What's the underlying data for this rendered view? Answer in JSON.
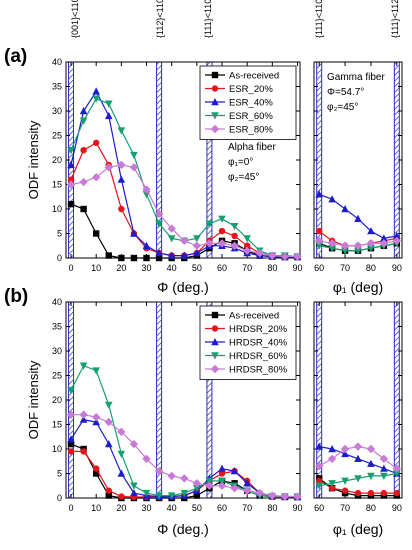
{
  "figure": {
    "top_labels": [
      "{001}<110>",
      "{112}<110>",
      "{111}<110>",
      "{111}<110>",
      "{111}<112>"
    ]
  },
  "chart_data": [
    {
      "id": "a-alpha",
      "panel_label": "(a)",
      "type": "line",
      "xlabel": "Φ (deg.)",
      "ylabel": "ODF intensity",
      "xlim": [
        -2,
        91
      ],
      "ylim": [
        0,
        40
      ],
      "xticks": [
        0,
        10,
        20,
        30,
        40,
        50,
        60,
        70,
        80,
        90
      ],
      "yticks": [
        0,
        5,
        10,
        15,
        20,
        25,
        30,
        35,
        40
      ],
      "hatch_x": [
        0,
        35,
        55
      ],
      "legend": "top-right",
      "annotation": [
        "Alpha fiber",
        "φ₁=0°",
        "φ₂=45°"
      ],
      "series": [
        {
          "name": "As-received",
          "color": "#000000",
          "marker": "square",
          "x": [
            0,
            5,
            10,
            15,
            20,
            25,
            30,
            35,
            40,
            45,
            50,
            55,
            60,
            65,
            70,
            75,
            80,
            85,
            90
          ],
          "y": [
            11,
            10,
            5,
            0.5,
            0,
            0,
            0,
            0,
            0,
            0,
            0.5,
            2,
            3.5,
            3,
            1.5,
            0.5,
            0.3,
            0.2,
            0.2
          ]
        },
        {
          "name": "ESR_20%",
          "color": "#e8141c",
          "marker": "circle",
          "x": [
            0,
            5,
            10,
            15,
            20,
            25,
            30,
            35,
            40,
            45,
            50,
            55,
            60,
            65,
            70,
            75,
            80,
            85,
            90
          ],
          "y": [
            16,
            22,
            23.5,
            19,
            10,
            5,
            2,
            1,
            0.5,
            0.5,
            1,
            3.5,
            5.5,
            4.5,
            2.5,
            1,
            0.5,
            0.3,
            0.3
          ]
        },
        {
          "name": "ESR_40%",
          "color": "#1c1ccc",
          "marker": "triangle-up",
          "x": [
            0,
            5,
            10,
            15,
            20,
            25,
            30,
            35,
            40,
            45,
            50,
            55,
            60,
            65,
            70,
            75,
            80,
            85,
            90
          ],
          "y": [
            19,
            30,
            34,
            29,
            16,
            5,
            2.5,
            1,
            0.5,
            0.5,
            1,
            2.5,
            2.5,
            2,
            1,
            0.5,
            0.3,
            0.2,
            0.2
          ]
        },
        {
          "name": "ESR_60%",
          "color": "#14a070",
          "marker": "triangle-down",
          "x": [
            0,
            5,
            10,
            15,
            20,
            25,
            30,
            35,
            40,
            45,
            50,
            55,
            60,
            65,
            70,
            75,
            80,
            85,
            90
          ],
          "y": [
            22,
            28,
            32.5,
            31.5,
            26,
            21,
            13,
            7,
            4,
            3.5,
            4,
            7,
            8,
            6.5,
            4,
            1.5,
            0.5,
            0.5,
            0.3
          ]
        },
        {
          "name": "ESR_80%",
          "color": "#c97ad6",
          "marker": "diamond",
          "x": [
            0,
            5,
            10,
            15,
            20,
            25,
            30,
            35,
            40,
            45,
            50,
            55,
            60,
            65,
            70,
            75,
            80,
            85,
            90
          ],
          "y": [
            15,
            15.5,
            16.5,
            18.5,
            19,
            18.5,
            14,
            9,
            6,
            3.5,
            2.5,
            3,
            3,
            2.5,
            1.5,
            1,
            0.5,
            0.3,
            0.3
          ]
        }
      ]
    },
    {
      "id": "a-gamma",
      "type": "line",
      "xlabel": "φ₁ (deg)",
      "xlim": [
        58,
        92
      ],
      "ylim": [
        0,
        40
      ],
      "xticks": [
        60,
        70,
        80,
        90
      ],
      "hatch_x": [
        60,
        90
      ],
      "annotation": [
        "Gamma fiber",
        "Φ=54.7°",
        "φ₂=45°"
      ],
      "series": [
        {
          "name": "As-received",
          "color": "#000000",
          "marker": "square",
          "x": [
            60,
            65,
            70,
            75,
            80,
            85,
            90
          ],
          "y": [
            3,
            2,
            1.5,
            1.5,
            2,
            2.5,
            3
          ]
        },
        {
          "name": "ESR_20%",
          "color": "#e8141c",
          "marker": "circle",
          "x": [
            60,
            65,
            70,
            75,
            80,
            85,
            90
          ],
          "y": [
            5.5,
            3.5,
            2.5,
            2.5,
            3,
            3.5,
            4
          ]
        },
        {
          "name": "ESR_40%",
          "color": "#1c1ccc",
          "marker": "triangle-up",
          "x": [
            60,
            65,
            70,
            75,
            80,
            85,
            90
          ],
          "y": [
            13,
            12,
            10,
            8,
            5.5,
            4,
            4.5
          ]
        },
        {
          "name": "ESR_60%",
          "color": "#14a070",
          "marker": "triangle-down",
          "x": [
            60,
            65,
            70,
            75,
            80,
            85,
            90
          ],
          "y": [
            2.5,
            2,
            1.5,
            1.5,
            2,
            2.5,
            3
          ]
        },
        {
          "name": "ESR_80%",
          "color": "#c97ad6",
          "marker": "diamond",
          "x": [
            60,
            65,
            70,
            75,
            80,
            85,
            90
          ],
          "y": [
            3.5,
            3,
            2.5,
            2.5,
            3,
            3,
            3.5
          ]
        }
      ]
    },
    {
      "id": "b-alpha",
      "panel_label": "(b)",
      "type": "line",
      "xlabel": "Φ (deg.)",
      "ylabel": "ODF intensity",
      "xlim": [
        -2,
        91
      ],
      "ylim": [
        0,
        40
      ],
      "xticks": [
        0,
        10,
        20,
        30,
        40,
        50,
        60,
        70,
        80,
        90
      ],
      "yticks": [
        0,
        5,
        10,
        15,
        20,
        25,
        30,
        35,
        40
      ],
      "hatch_x": [
        0,
        35,
        55
      ],
      "legend": "top-right",
      "series": [
        {
          "name": "As-received",
          "color": "#000000",
          "marker": "square",
          "x": [
            0,
            5,
            10,
            15,
            20,
            25,
            30,
            35,
            40,
            45,
            50,
            55,
            60,
            65,
            70,
            75,
            80,
            85,
            90
          ],
          "y": [
            11,
            10,
            5,
            0.5,
            0,
            0,
            0,
            0,
            0,
            0,
            0.5,
            2,
            3.5,
            3,
            1.5,
            0.5,
            0.3,
            0.2,
            0.2
          ]
        },
        {
          "name": "HRDSR_20%",
          "color": "#e8141c",
          "marker": "circle",
          "x": [
            0,
            5,
            10,
            15,
            20,
            25,
            30,
            35,
            40,
            45,
            50,
            55,
            60,
            65,
            70,
            75,
            80,
            85,
            90
          ],
          "y": [
            9.5,
            9.5,
            6,
            1.5,
            0.3,
            0.2,
            0.2,
            0.2,
            0.3,
            0.5,
            1.5,
            3.5,
            5,
            5.5,
            3.5,
            1,
            0.3,
            0.2,
            0.2
          ]
        },
        {
          "name": "HRDSR_40%",
          "color": "#1c1ccc",
          "marker": "triangle-up",
          "x": [
            0,
            5,
            10,
            15,
            20,
            25,
            30,
            35,
            40,
            45,
            50,
            55,
            60,
            65,
            70,
            75,
            80,
            85,
            90
          ],
          "y": [
            12,
            16,
            15.5,
            11,
            5,
            1,
            0.5,
            0.3,
            0.3,
            0.5,
            1.5,
            4,
            6,
            5.5,
            3,
            1,
            0.5,
            0.3,
            0.2
          ]
        },
        {
          "name": "HRDSR_60%",
          "color": "#14a070",
          "marker": "triangle-down",
          "x": [
            0,
            5,
            10,
            15,
            20,
            25,
            30,
            35,
            40,
            45,
            50,
            55,
            60,
            65,
            70,
            75,
            80,
            85,
            90
          ],
          "y": [
            22,
            27,
            26,
            19,
            9,
            2.5,
            1,
            0.5,
            0.5,
            1,
            2,
            3.5,
            3.5,
            2.5,
            1.5,
            0.5,
            0.3,
            0.3,
            0.3
          ]
        },
        {
          "name": "HRDSR_80%",
          "color": "#c97ad6",
          "marker": "diamond",
          "x": [
            0,
            5,
            10,
            15,
            20,
            25,
            30,
            35,
            40,
            45,
            50,
            55,
            60,
            65,
            70,
            75,
            80,
            85,
            90
          ],
          "y": [
            17,
            17,
            16.5,
            15.5,
            13.5,
            11,
            8,
            5.5,
            4.5,
            4,
            3,
            2.5,
            2.5,
            2,
            1.5,
            1,
            0.5,
            0.3,
            0.3
          ]
        }
      ]
    },
    {
      "id": "b-gamma",
      "type": "line",
      "xlabel": "φ₁ (deg)",
      "xlim": [
        58,
        92
      ],
      "ylim": [
        0,
        40
      ],
      "xticks": [
        60,
        70,
        80,
        90
      ],
      "hatch_x": [
        60,
        90
      ],
      "series": [
        {
          "name": "As-received",
          "color": "#000000",
          "marker": "square",
          "x": [
            60,
            65,
            70,
            75,
            80,
            85,
            90
          ],
          "y": [
            4,
            2,
            1,
            0.5,
            0.5,
            0.5,
            0.5
          ]
        },
        {
          "name": "HRDSR_20%",
          "color": "#e8141c",
          "marker": "circle",
          "x": [
            60,
            65,
            70,
            75,
            80,
            85,
            90
          ],
          "y": [
            3.5,
            2,
            1.5,
            1,
            1,
            1,
            1
          ]
        },
        {
          "name": "HRDSR_40%",
          "color": "#1c1ccc",
          "marker": "triangle-up",
          "x": [
            60,
            65,
            70,
            75,
            80,
            85,
            90
          ],
          "y": [
            10.5,
            10,
            9,
            8,
            7,
            6,
            5
          ]
        },
        {
          "name": "HRDSR_60%",
          "color": "#14a070",
          "marker": "triangle-down",
          "x": [
            60,
            65,
            70,
            75,
            80,
            85,
            90
          ],
          "y": [
            2.5,
            3,
            3.5,
            4,
            4.5,
            4.5,
            5
          ]
        },
        {
          "name": "HRDSR_80%",
          "color": "#c97ad6",
          "marker": "diamond",
          "x": [
            60,
            65,
            70,
            75,
            80,
            85,
            90
          ],
          "y": [
            6.5,
            8,
            10,
            10.5,
            10,
            8,
            6
          ]
        }
      ]
    }
  ]
}
